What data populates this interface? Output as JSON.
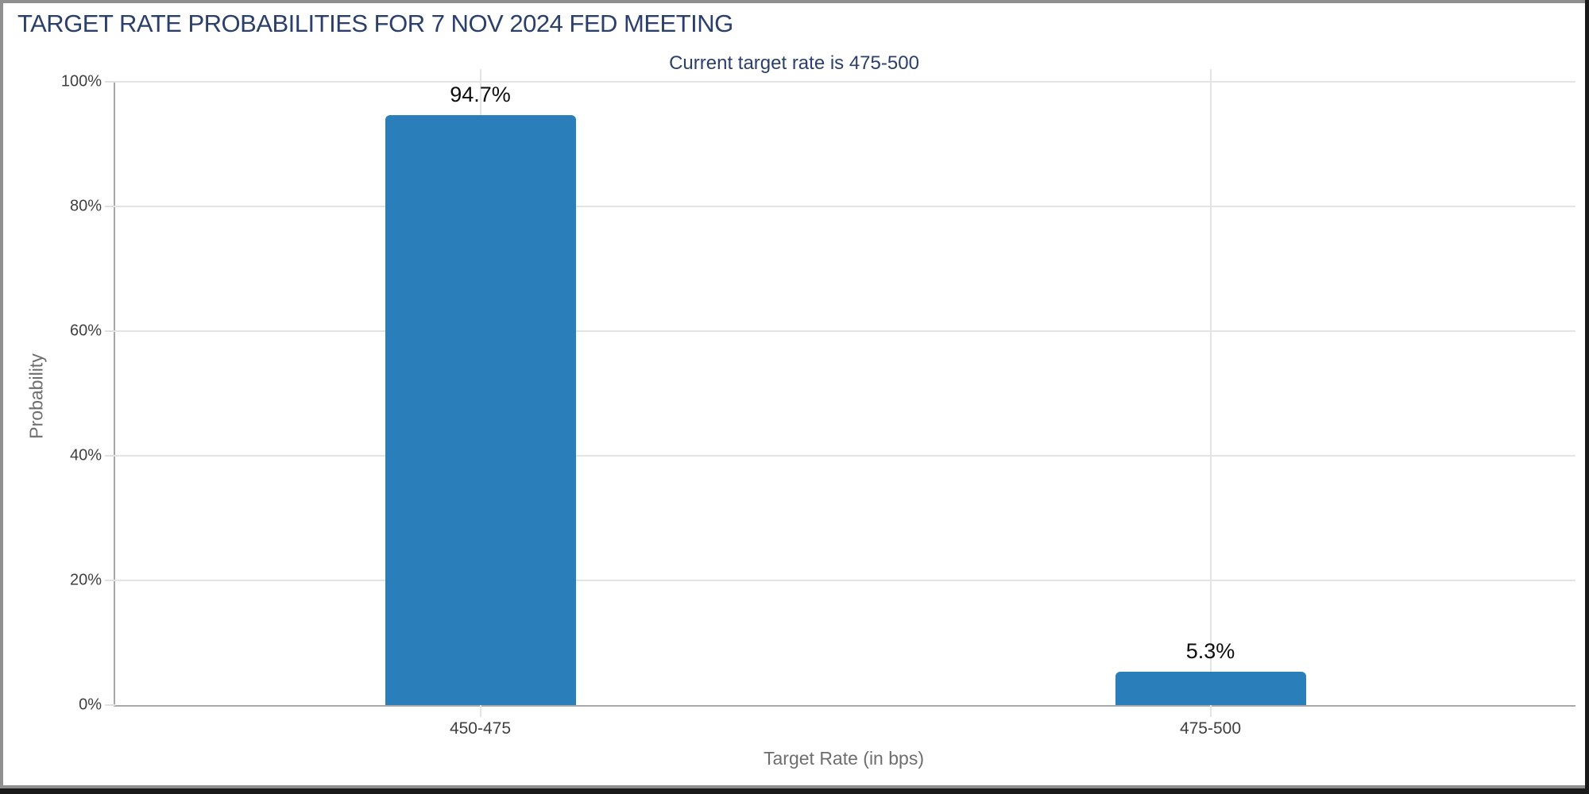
{
  "window": {
    "background": "#ffffff",
    "frame_gray": "#8f8f8f",
    "frame_dark": "#1a1a1a"
  },
  "chart": {
    "title": "TARGET RATE PROBABILITIES FOR 7 NOV 2024 FED MEETING",
    "subtitle": "Current target rate is 475-500",
    "xlabel": "Target Rate (in bps)",
    "ylabel": "Probability",
    "title_color": "#2b3f6b",
    "subtitle_color": "#2b3f6b"
  },
  "chart_data": {
    "type": "bar",
    "title": "TARGET RATE PROBABILITIES FOR 7 NOV 2024 FED MEETING",
    "subtitle": "Current target rate is 475-500",
    "categories": [
      "450-475",
      "475-500"
    ],
    "values": [
      94.7,
      5.3
    ],
    "value_labels": [
      "94.7%",
      "5.3%"
    ],
    "xlabel": "Target Rate (in bps)",
    "ylabel": "Probability",
    "ylim": [
      0,
      100
    ],
    "yticks": [
      "0%",
      "20%",
      "40%",
      "60%",
      "80%",
      "100%"
    ],
    "ytick_values": [
      0,
      20,
      40,
      60,
      80,
      100
    ],
    "bar_color": "#2a7fba",
    "grid": true,
    "legend": false
  }
}
